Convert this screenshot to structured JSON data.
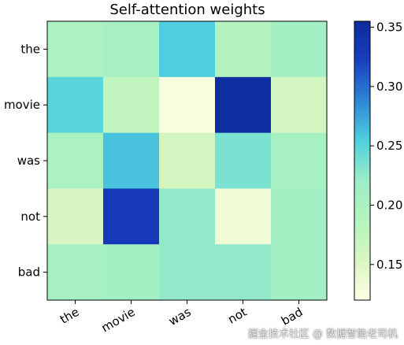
{
  "watermark": "掘金技术社区 @ 数据智能老司机",
  "chart_data": {
    "type": "heatmap",
    "title": "Self-attention weights",
    "x_labels": [
      "the",
      "movie",
      "was",
      "not",
      "bad"
    ],
    "y_labels": [
      "the",
      "movie",
      "was",
      "not",
      "bad"
    ],
    "values": [
      [
        0.2,
        0.205,
        0.255,
        0.19,
        0.21
      ],
      [
        0.25,
        0.175,
        0.125,
        0.35,
        0.16
      ],
      [
        0.2,
        0.26,
        0.16,
        0.235,
        0.205
      ],
      [
        0.155,
        0.33,
        0.225,
        0.135,
        0.21
      ],
      [
        0.205,
        0.21,
        0.225,
        0.225,
        0.21
      ]
    ],
    "colorbar": {
      "min": 0.12,
      "max": 0.355,
      "ticks": [
        0.15,
        0.2,
        0.25,
        0.3,
        0.35
      ],
      "colormap": "GnBu",
      "stops": [
        "#ffffe5",
        "#d9f5c2",
        "#b4f4be",
        "#9cedc6",
        "#4fd0de",
        "#2e86d6",
        "#1a40c0",
        "#0b2a9c"
      ]
    },
    "xlabel": "",
    "ylabel": "",
    "grid": false
  }
}
